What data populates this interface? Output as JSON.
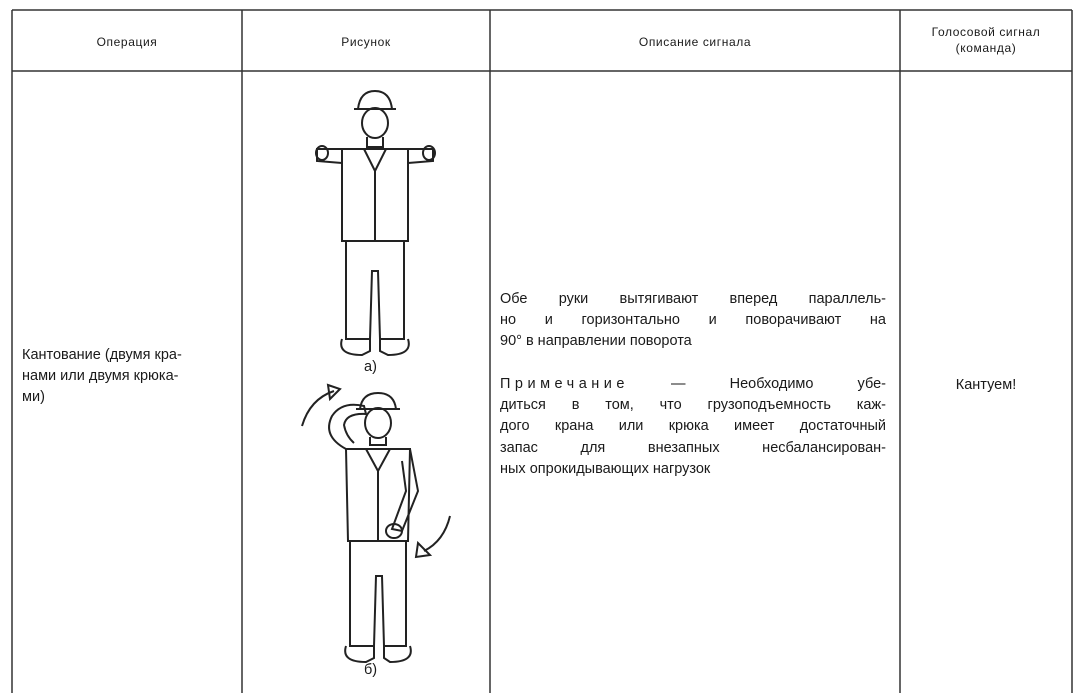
{
  "table": {
    "headers": [
      "Операция",
      "Рисунок",
      "Описание сигнала",
      "Голосовой сигнал (команда)"
    ],
    "rows": [
      {
        "operation": [
          "Кантование (двумя кра-",
          "нами или двумя крюка-",
          "ми)"
        ],
        "figure_captions": [
          "а)",
          "б)"
        ],
        "description": [
          "Обе руки вытягивают вперед параллель-",
          "но и горизонтально и поворачивают на",
          "90° в направлении поворота"
        ],
        "note_label": "Примечание",
        "note": [
          "— Необходимо убе-",
          "диться в том, что грузоподъемность каж-",
          "дого крана или крюка имеет достаточный",
          "запас для внезапных несбалансирован-",
          "ных опрокидывающих нагрузок"
        ],
        "voice_signal": "Кантуем!"
      }
    ]
  }
}
